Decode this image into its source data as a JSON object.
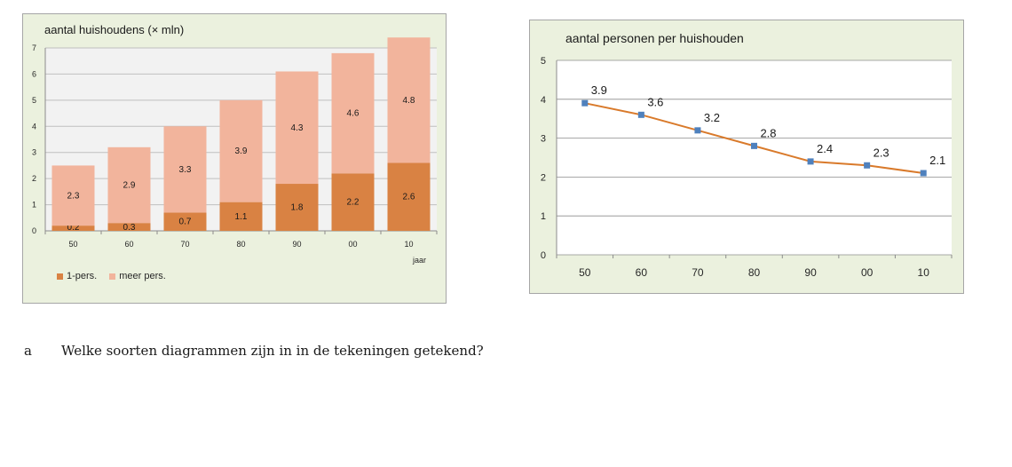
{
  "chart_data": [
    {
      "type": "bar",
      "stacked": true,
      "title": "aantal huishoudens (× mln)",
      "xlabel": "jaar",
      "ylabel": "",
      "categories": [
        "50",
        "60",
        "70",
        "80",
        "90",
        "00",
        "10"
      ],
      "series": [
        {
          "name": "1-pers.",
          "values": [
            0.2,
            0.3,
            0.7,
            1.1,
            1.8,
            2.2,
            2.6
          ],
          "color": "#d98243"
        },
        {
          "name": "meer pers.",
          "values": [
            2.3,
            2.9,
            3.3,
            3.9,
            4.3,
            4.6,
            4.8
          ],
          "color": "#f2b49c"
        }
      ],
      "y_ticks": [
        "0",
        "1",
        "2",
        "3",
        "4",
        "5",
        "6",
        "7"
      ],
      "ylim": [
        0,
        7
      ],
      "grid": true,
      "legend": "bottom-left",
      "plot_background": "#f2f2f2"
    },
    {
      "type": "line",
      "title": "aantal personen per huishouden",
      "xlabel": "",
      "ylabel": "",
      "categories": [
        "50",
        "60",
        "70",
        "80",
        "90",
        "00",
        "10"
      ],
      "series": [
        {
          "values": [
            3.9,
            3.6,
            3.2,
            2.8,
            2.4,
            2.3,
            2.1
          ],
          "labels": [
            "3.9",
            "3.6",
            "3.2",
            "2.8",
            "2.4",
            "2.3",
            "2.1"
          ],
          "color": "#d97a2b",
          "marker_color": "#4f81bd"
        }
      ],
      "y_ticks": [
        "0",
        "1",
        "2",
        "3",
        "4",
        "5"
      ],
      "ylim": [
        0,
        5
      ],
      "grid": true,
      "legend": "none",
      "plot_background": "#ffffff"
    }
  ],
  "question": {
    "letter": "a",
    "text": "Welke soorten diagrammen zijn in in de tekeningen getekend?"
  }
}
